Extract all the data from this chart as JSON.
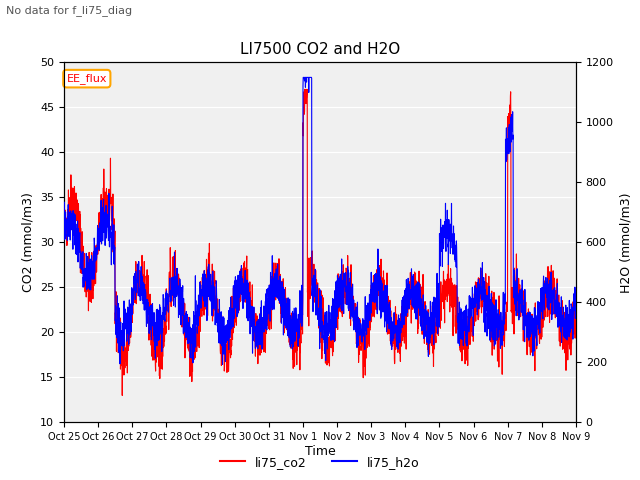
{
  "title": "LI7500 CO2 and H2O",
  "suptitle": "No data for f_li75_diag",
  "xlabel": "Time",
  "ylabel_left": "CO2 (mmol/m3)",
  "ylabel_right": "H2O (mmol/m3)",
  "ylim_left": [
    10,
    50
  ],
  "ylim_right": [
    0,
    1200
  ],
  "legend_labels": [
    "li75_co2",
    "li75_h2o"
  ],
  "xtick_labels": [
    "Oct 25",
    "Oct 26",
    "Oct 27",
    "Oct 28",
    "Oct 29",
    "Oct 30",
    "Oct 31",
    "Nov 1",
    "Nov 2",
    "Nov 3",
    "Nov 4",
    "Nov 5",
    "Nov 6",
    "Nov 7",
    "Nov 8",
    "Nov 9"
  ],
  "annotation_text": "EE_flux",
  "plot_bg_color": "#f0f0f0",
  "line_color_co2": "red",
  "line_color_h2o": "blue",
  "linewidth": 0.8
}
